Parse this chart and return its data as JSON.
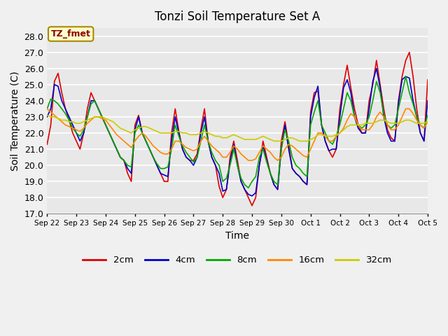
{
  "title": "Tonzi Soil Temperature Set A",
  "xlabel": "Time",
  "ylabel": "Soil Temperature (C)",
  "annotation": "TZ_fmet",
  "ylim": [
    17.0,
    28.5
  ],
  "yticks": [
    17.0,
    18.0,
    19.0,
    20.0,
    21.0,
    22.0,
    23.0,
    24.0,
    25.0,
    26.0,
    27.0,
    28.0
  ],
  "xtick_labels": [
    "Sep 22",
    "Sep 23",
    "Sep 24",
    "Sep 25",
    "Sep 26",
    "Sep 27",
    "Sep 28",
    "Sep 29",
    "Sep 30",
    "Oct 1",
    "Oct 2",
    "Oct 3",
    "Oct 4",
    "Oct 5"
  ],
  "fig_color": "#f0f0f0",
  "plot_bg_color": "#e8e8e8",
  "grid_color": "#ffffff",
  "series": {
    "2cm": {
      "color": "#dd0000",
      "lw": 1.2
    },
    "4cm": {
      "color": "#0000cc",
      "lw": 1.2
    },
    "8cm": {
      "color": "#00aa00",
      "lw": 1.2
    },
    "16cm": {
      "color": "#ff8800",
      "lw": 1.2
    },
    "32cm": {
      "color": "#cccc00",
      "lw": 1.2
    }
  },
  "t": [
    0,
    0.125,
    0.25,
    0.375,
    0.5,
    0.625,
    0.75,
    0.875,
    1,
    1.125,
    1.25,
    1.375,
    1.5,
    1.625,
    1.75,
    1.875,
    2,
    2.125,
    2.25,
    2.375,
    2.5,
    2.625,
    2.75,
    2.875,
    3,
    3.125,
    3.25,
    3.375,
    3.5,
    3.625,
    3.75,
    3.875,
    4,
    4.125,
    4.25,
    4.375,
    4.5,
    4.625,
    4.75,
    4.875,
    5,
    5.125,
    5.25,
    5.375,
    5.5,
    5.625,
    5.75,
    5.875,
    6,
    6.125,
    6.25,
    6.375,
    6.5,
    6.625,
    6.75,
    6.875,
    7,
    7.125,
    7.25,
    7.375,
    7.5,
    7.625,
    7.75,
    7.875,
    8,
    8.125,
    8.25,
    8.375,
    8.5,
    8.625,
    8.75,
    8.875,
    9,
    9.125,
    9.25,
    9.375,
    9.5,
    9.625,
    9.75,
    9.875,
    10,
    10.125,
    10.25,
    10.375,
    10.5,
    10.625,
    10.75,
    10.875,
    11,
    11.125,
    11.25,
    11.375,
    11.5,
    11.625,
    11.75,
    11.875,
    12,
    12.125,
    12.25,
    12.375,
    12.5,
    12.625,
    12.75,
    12.875,
    13
  ],
  "y_2cm": [
    21.3,
    22.5,
    25.2,
    25.7,
    24.5,
    23.5,
    22.8,
    22.0,
    21.5,
    21.0,
    22.0,
    23.5,
    24.5,
    24.0,
    23.5,
    23.0,
    22.5,
    22.0,
    21.5,
    21.0,
    20.5,
    20.3,
    19.5,
    19.0,
    22.5,
    23.1,
    22.0,
    21.5,
    21.0,
    20.5,
    20.0,
    19.5,
    19.0,
    19.0,
    22.0,
    23.5,
    22.1,
    21.0,
    20.5,
    20.3,
    20.3,
    20.7,
    22.2,
    23.5,
    21.5,
    20.5,
    20.0,
    18.7,
    18.0,
    18.5,
    20.5,
    21.5,
    20.3,
    19.0,
    18.5,
    18.0,
    17.5,
    18.0,
    20.0,
    21.5,
    20.5,
    19.5,
    18.8,
    18.5,
    21.5,
    22.7,
    21.3,
    19.8,
    19.5,
    19.3,
    19.0,
    18.8,
    23.3,
    24.5,
    24.6,
    22.5,
    21.5,
    20.9,
    20.5,
    21.0,
    23.5,
    25.0,
    26.2,
    24.8,
    23.5,
    22.5,
    22.0,
    22.0,
    24.0,
    25.0,
    26.5,
    25.0,
    23.5,
    22.2,
    21.7,
    21.5,
    24.0,
    25.5,
    26.5,
    27.0,
    25.5,
    23.5,
    22.0,
    21.5,
    25.3
  ],
  "y_4cm": [
    23.0,
    23.5,
    25.0,
    24.9,
    24.0,
    23.5,
    23.0,
    22.5,
    22.0,
    21.5,
    22.0,
    23.0,
    24.0,
    24.0,
    23.5,
    23.0,
    22.5,
    22.0,
    21.5,
    21.0,
    20.5,
    20.3,
    19.8,
    19.5,
    22.2,
    23.0,
    22.0,
    21.5,
    21.0,
    20.5,
    20.0,
    19.5,
    19.4,
    19.3,
    21.5,
    23.0,
    22.0,
    21.0,
    20.5,
    20.3,
    20.0,
    20.5,
    22.0,
    23.0,
    21.5,
    20.5,
    20.0,
    19.5,
    18.4,
    18.5,
    20.2,
    21.3,
    20.0,
    19.0,
    18.5,
    18.2,
    18.1,
    18.3,
    20.0,
    21.2,
    20.3,
    19.5,
    18.8,
    18.5,
    21.0,
    22.5,
    21.0,
    19.8,
    19.5,
    19.3,
    19.0,
    18.8,
    23.0,
    24.2,
    24.9,
    22.5,
    21.5,
    20.9,
    21.0,
    21.0,
    23.0,
    24.8,
    25.3,
    24.5,
    23.0,
    22.3,
    22.0,
    22.0,
    23.5,
    25.2,
    26.0,
    24.8,
    23.0,
    22.0,
    21.5,
    21.5,
    23.8,
    25.3,
    25.5,
    25.4,
    24.0,
    23.0,
    22.0,
    21.5,
    24.0
  ],
  "y_8cm": [
    23.5,
    24.1,
    24.0,
    23.8,
    23.5,
    23.2,
    22.8,
    22.3,
    22.0,
    21.8,
    22.2,
    23.0,
    23.8,
    24.0,
    23.5,
    23.0,
    22.5,
    22.0,
    21.5,
    21.0,
    20.5,
    20.3,
    20.0,
    19.9,
    22.0,
    22.5,
    22.0,
    21.5,
    21.0,
    20.5,
    20.1,
    19.8,
    19.8,
    19.9,
    21.0,
    22.5,
    21.8,
    21.2,
    20.8,
    20.5,
    20.2,
    20.5,
    21.5,
    22.5,
    21.5,
    20.8,
    20.3,
    20.0,
    19.0,
    19.2,
    20.0,
    21.0,
    20.0,
    19.2,
    18.8,
    18.6,
    19.0,
    19.3,
    20.5,
    21.0,
    20.2,
    19.5,
    19.0,
    18.8,
    21.0,
    22.2,
    21.5,
    20.5,
    20.0,
    19.8,
    19.5,
    19.3,
    22.5,
    23.3,
    24.0,
    22.5,
    22.0,
    21.5,
    21.3,
    21.8,
    22.5,
    23.5,
    24.5,
    24.0,
    23.0,
    22.5,
    22.3,
    22.5,
    23.0,
    24.0,
    25.2,
    24.5,
    23.2,
    22.5,
    22.3,
    22.5,
    23.5,
    24.5,
    25.5,
    24.5,
    23.8,
    23.0,
    22.5,
    22.3,
    23.1
  ],
  "y_16cm": [
    23.5,
    23.3,
    23.1,
    22.9,
    22.7,
    22.5,
    22.4,
    22.3,
    22.2,
    22.1,
    22.3,
    22.6,
    22.8,
    23.0,
    23.0,
    22.9,
    22.8,
    22.5,
    22.2,
    21.9,
    21.7,
    21.5,
    21.3,
    21.1,
    21.5,
    21.8,
    22.0,
    21.8,
    21.5,
    21.2,
    21.0,
    20.8,
    20.7,
    20.7,
    21.0,
    21.5,
    21.5,
    21.3,
    21.1,
    21.0,
    20.9,
    21.0,
    21.5,
    21.8,
    21.5,
    21.2,
    21.0,
    20.8,
    20.5,
    20.5,
    20.8,
    21.2,
    21.0,
    20.7,
    20.5,
    20.3,
    20.3,
    20.4,
    20.8,
    21.2,
    21.0,
    20.8,
    20.5,
    20.3,
    20.5,
    21.0,
    21.3,
    21.2,
    21.0,
    20.8,
    20.6,
    20.5,
    21.0,
    21.5,
    22.0,
    22.0,
    21.8,
    21.5,
    21.5,
    21.8,
    22.0,
    22.3,
    22.8,
    23.2,
    23.0,
    22.5,
    22.2,
    22.2,
    22.2,
    22.5,
    23.0,
    23.3,
    23.0,
    22.5,
    22.2,
    22.2,
    22.5,
    23.0,
    23.5,
    23.5,
    23.2,
    22.8,
    22.5,
    22.3,
    22.7
  ],
  "y_32cm": [
    23.1,
    23.0,
    23.0,
    22.9,
    22.8,
    22.8,
    22.7,
    22.7,
    22.6,
    22.6,
    22.7,
    22.8,
    22.9,
    23.0,
    23.0,
    23.0,
    22.9,
    22.8,
    22.7,
    22.5,
    22.3,
    22.2,
    22.1,
    22.0,
    22.2,
    22.3,
    22.4,
    22.4,
    22.3,
    22.2,
    22.1,
    22.0,
    22.0,
    22.0,
    22.0,
    22.1,
    22.1,
    22.0,
    22.0,
    21.9,
    21.9,
    21.9,
    22.0,
    22.1,
    22.0,
    21.9,
    21.8,
    21.8,
    21.7,
    21.7,
    21.8,
    21.9,
    21.8,
    21.7,
    21.6,
    21.6,
    21.6,
    21.6,
    21.7,
    21.8,
    21.7,
    21.6,
    21.5,
    21.5,
    21.5,
    21.6,
    21.7,
    21.7,
    21.6,
    21.5,
    21.5,
    21.5,
    21.6,
    21.7,
    21.9,
    21.9,
    21.8,
    21.8,
    21.8,
    21.9,
    22.0,
    22.2,
    22.4,
    22.5,
    22.5,
    22.5,
    22.5,
    22.6,
    22.6,
    22.6,
    22.7,
    22.8,
    22.8,
    22.7,
    22.6,
    22.6,
    22.6,
    22.7,
    22.8,
    22.8,
    22.7,
    22.6,
    22.6,
    22.6,
    22.7
  ]
}
